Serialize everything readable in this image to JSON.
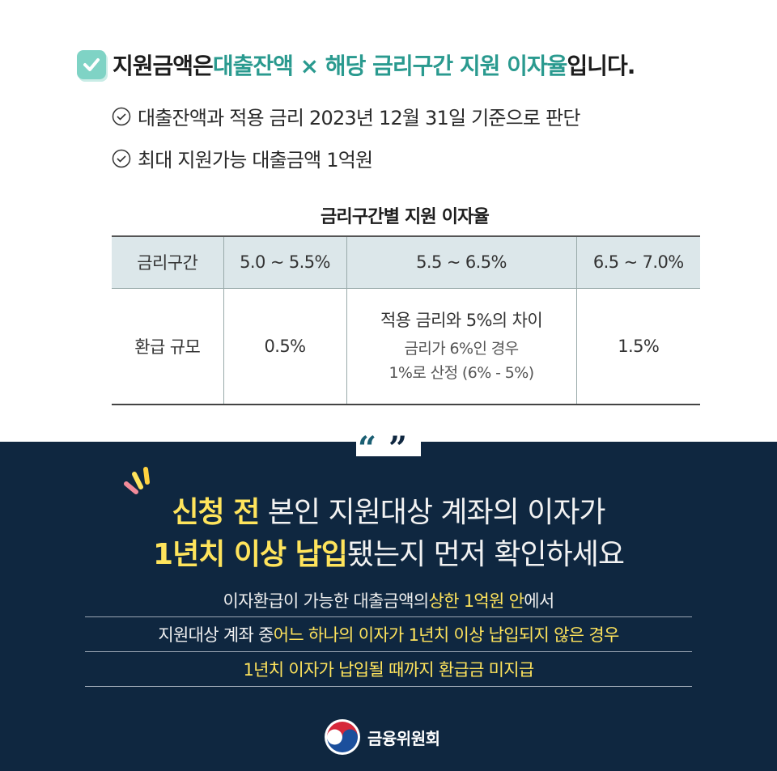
{
  "headline": {
    "prefix": "지원금액은 ",
    "highlight": "대출잔액 × 해당 금리구간 지원 이자율",
    "suffix": "입니다."
  },
  "bullets": [
    "대출잔액과 적용 금리 2023년 12월 31일 기준으로 판단",
    "최대 지원가능 대출금액 1억원"
  ],
  "table": {
    "title": "금리구간별 지원 이자율",
    "headers": [
      "금리구간",
      "5.0 ~ 5.5%",
      "5.5 ~ 6.5%",
      "6.5 ~ 7.0%"
    ],
    "row_label": "환급 규모",
    "col1": "0.5%",
    "col2_main": "적용 금리와 5%의 차이",
    "col2_sub1": "금리가 6%인 경우",
    "col2_sub2": "1%로 산정 (6% - 5%)",
    "col3": "1.5%"
  },
  "callout": {
    "line1_highlight": "신청 전",
    "line1_rest": " 본인 지원대상 계좌의 이자가",
    "line2_highlight": "1년치 이상 납입",
    "line2_rest": "됐는지 먼저 확인하세요"
  },
  "notes": {
    "n1_a": "이자환급이 가능한 대출금액의 ",
    "n1_b": "상한 1억원 안",
    "n1_c": "에서",
    "n2_a": "지원대상 계좌 중 ",
    "n2_b": "어느 하나의 이자가 1년치 이상 납입되지 않은 경우",
    "n3": "1년치 이자가 납입될 때까지 환급금 미지급"
  },
  "logo": {
    "text": "금융위원회"
  },
  "colors": {
    "teal": "#2a9a8f",
    "navy": "#0f2740",
    "yellow": "#ffe45c",
    "table_header": "#dce7ea"
  }
}
